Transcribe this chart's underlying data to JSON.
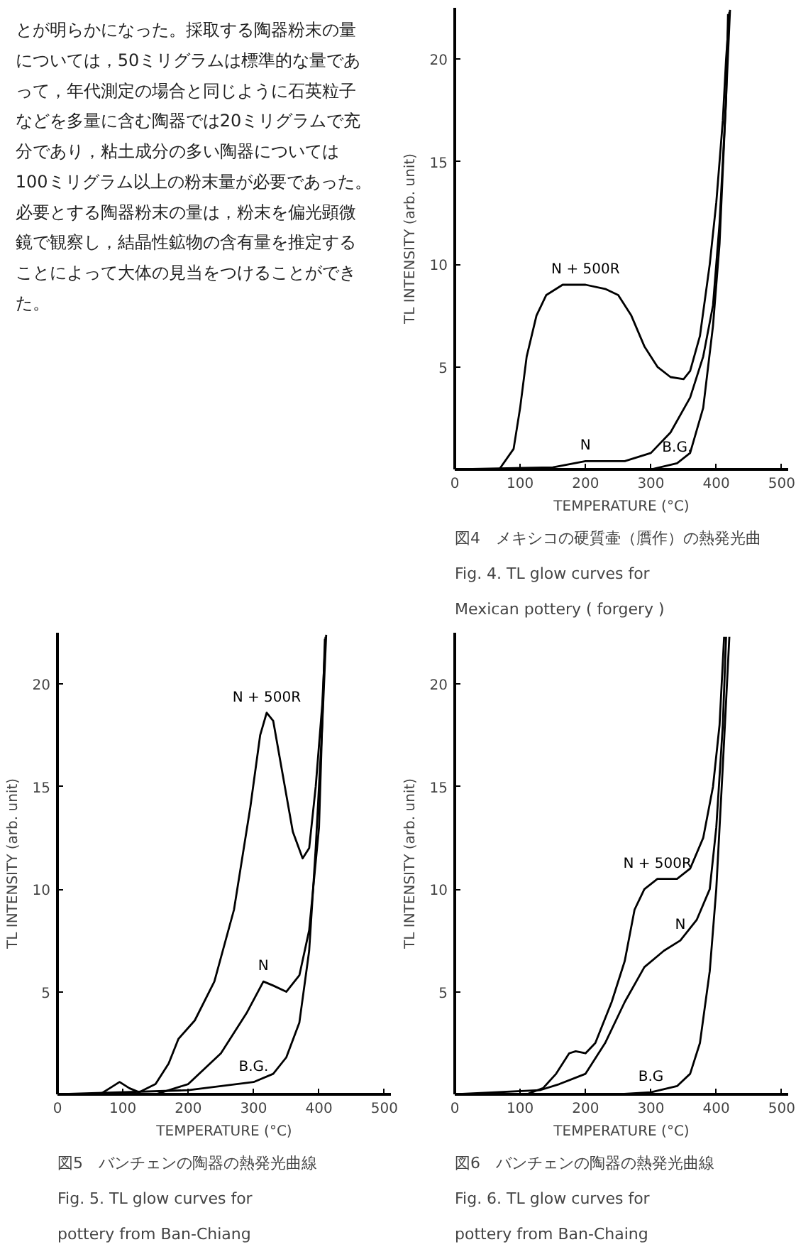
{
  "chart_data": [
    {
      "type": "other",
      "annotations": [
        "とが明らかになった。採取する陶器粉末の量",
        "については，50ミリグラムは標準的な量であ",
        "って，年代測定の場合と同じように石英粒子",
        "などを多量に含む陶器では20ミリグラムで充",
        "分であり，粘土成分の多い陶器については",
        "100ミリグラム以上の粉末量が必要であった。",
        "必要とする陶器粉末の量は，粉末を偏光顕微",
        "鏡で観察し，結晶性鉱物の含有量を推定する",
        "ことによって大体の見当をつけることができ",
        "た。"
      ]
    },
    {
      "type": "line",
      "xlabel": "TEMPERATURE (°C)",
      "ylabel": "TL INTENSITY (arb. unit)",
      "xlim": [
        0,
        510
      ],
      "ylim": [
        0,
        22.5
      ],
      "xticks": [
        0,
        100,
        200,
        300,
        400,
        500
      ],
      "yticks": [
        5,
        10,
        15,
        20
      ],
      "grid": false,
      "line_style": "solid",
      "series": [
        {
          "color": "#000000",
          "x": [
            68,
            90,
            100,
            110,
            125,
            140,
            165,
            200,
            230,
            250,
            270,
            290,
            310,
            330,
            350,
            360,
            375,
            390,
            400,
            410,
            415,
            420
          ],
          "values": [
            0,
            1,
            3,
            5.5,
            7.5,
            8.5,
            9,
            9,
            8.8,
            8.5,
            7.5,
            6,
            5,
            4.5,
            4.4,
            4.8,
            6.5,
            10,
            13,
            17,
            20,
            22.3
          ]
        },
        {
          "color": "#000000",
          "x": [
            0,
            150,
            200,
            260,
            300,
            330,
            360,
            380,
            395,
            405,
            415,
            418
          ],
          "values": [
            0,
            0.1,
            0.4,
            0.4,
            0.8,
            1.8,
            3.5,
            5.5,
            8,
            12,
            18,
            22.2
          ]
        },
        {
          "color": "#000000",
          "x": [
            0,
            300,
            340,
            360,
            380,
            395,
            405,
            412,
            421
          ],
          "values": [
            0,
            0,
            0.3,
            0.8,
            3,
            7,
            11,
            16,
            22.4
          ]
        }
      ],
      "annotations": [
        {
          "text": "N + 500R",
          "x": 200,
          "y": 9
        },
        {
          "text": "N",
          "x": 200,
          "y": 0.4
        },
        {
          "text": "B.G.",
          "x": 340,
          "y": 0.3
        },
        "図4　メキシコの硬質壷（贋作）の熱発光曲",
        "Fig. 4. TL glow curves for",
        "Mexican pottery ( forgery )"
      ]
    },
    {
      "type": "line",
      "xlabel": "TEMPERATURE (°C)",
      "ylabel": "TL INTENSITY (arb. unit)",
      "xlim": [
        0,
        510
      ],
      "ylim": [
        0,
        22.5
      ],
      "xticks": [
        0,
        100,
        200,
        300,
        400,
        500
      ],
      "yticks": [
        5,
        10,
        15,
        20
      ],
      "grid": false,
      "line_style": "solid",
      "series": [
        {
          "color": "#000000",
          "x": [
            0,
            65,
            80,
            95,
            110,
            125,
            150,
            170,
            185,
            210,
            240,
            270,
            295,
            310,
            320,
            330,
            345,
            360,
            375,
            385,
            395,
            405,
            410
          ],
          "values": [
            0,
            0,
            0.3,
            0.6,
            0.3,
            0.1,
            0.5,
            1.5,
            2.7,
            3.6,
            5.5,
            9,
            14,
            17.5,
            18.6,
            18.2,
            15.5,
            12.8,
            11.5,
            12,
            15,
            19,
            22.3
          ]
        },
        {
          "color": "#000000",
          "x": [
            0,
            150,
            200,
            250,
            290,
            315,
            330,
            350,
            370,
            385,
            400,
            409
          ],
          "values": [
            0,
            0,
            0.5,
            2,
            4,
            5.5,
            5.3,
            5,
            5.8,
            8,
            13,
            22.2
          ]
        },
        {
          "color": "#000000",
          "x": [
            0,
            200,
            300,
            330,
            350,
            370,
            385,
            395,
            405,
            411
          ],
          "values": [
            0,
            0.2,
            0.6,
            1,
            1.8,
            3.5,
            7,
            12,
            18,
            22.4
          ]
        }
      ],
      "annotations": [
        {
          "text": "N + 500R",
          "x": 320,
          "y": 18.6
        },
        {
          "text": "N",
          "x": 315,
          "y": 5.5
        },
        {
          "text": "B.G.",
          "x": 300,
          "y": 0.6
        },
        "図5　バンチェンの陶器の熱発光曲線",
        "Fig. 5. TL glow curves for",
        "pottery from Ban-Chiang"
      ]
    },
    {
      "type": "line",
      "xlabel": "TEMPERATURE (°C)",
      "ylabel": "TL INTENSITY (arb. unit)",
      "xlim": [
        0,
        510
      ],
      "ylim": [
        0,
        22.5
      ],
      "xticks": [
        0,
        100,
        200,
        300,
        400,
        500
      ],
      "yticks": [
        5,
        10,
        15,
        20
      ],
      "grid": false,
      "line_style": "solid",
      "series": [
        {
          "color": "#000000",
          "x": [
            0,
            110,
            135,
            155,
            175,
            185,
            200,
            215,
            240,
            260,
            275,
            290,
            310,
            340,
            360,
            380,
            395,
            405,
            412
          ],
          "values": [
            0,
            0,
            0.3,
            1,
            2,
            2.1,
            2,
            2.5,
            4.5,
            6.5,
            9,
            10,
            10.5,
            10.5,
            11,
            12.5,
            15,
            18,
            22.3
          ]
        },
        {
          "color": "#000000",
          "x": [
            0,
            130,
            160,
            200,
            230,
            260,
            290,
            320,
            345,
            370,
            390,
            400,
            410,
            415
          ],
          "values": [
            0,
            0.2,
            0.5,
            1,
            2.5,
            4.5,
            6.2,
            7,
            7.5,
            8.5,
            10,
            13,
            18,
            22.3
          ]
        },
        {
          "color": "#000000",
          "x": [
            0,
            250,
            300,
            340,
            360,
            375,
            390,
            400,
            410,
            420
          ],
          "values": [
            0,
            0,
            0.1,
            0.4,
            1,
            2.5,
            6,
            10,
            16,
            22.3
          ]
        }
      ],
      "annotations": [
        {
          "text": "N + 500R",
          "x": 310,
          "y": 10.5
        },
        {
          "text": "N",
          "x": 345,
          "y": 7.5
        },
        {
          "text": "B.G",
          "x": 300,
          "y": 0.1
        },
        "図6　バンチェンの陶器の熱発光曲線",
        "Fig. 6. TL glow curves for",
        "pottery from Ban-Chaing"
      ]
    }
  ]
}
